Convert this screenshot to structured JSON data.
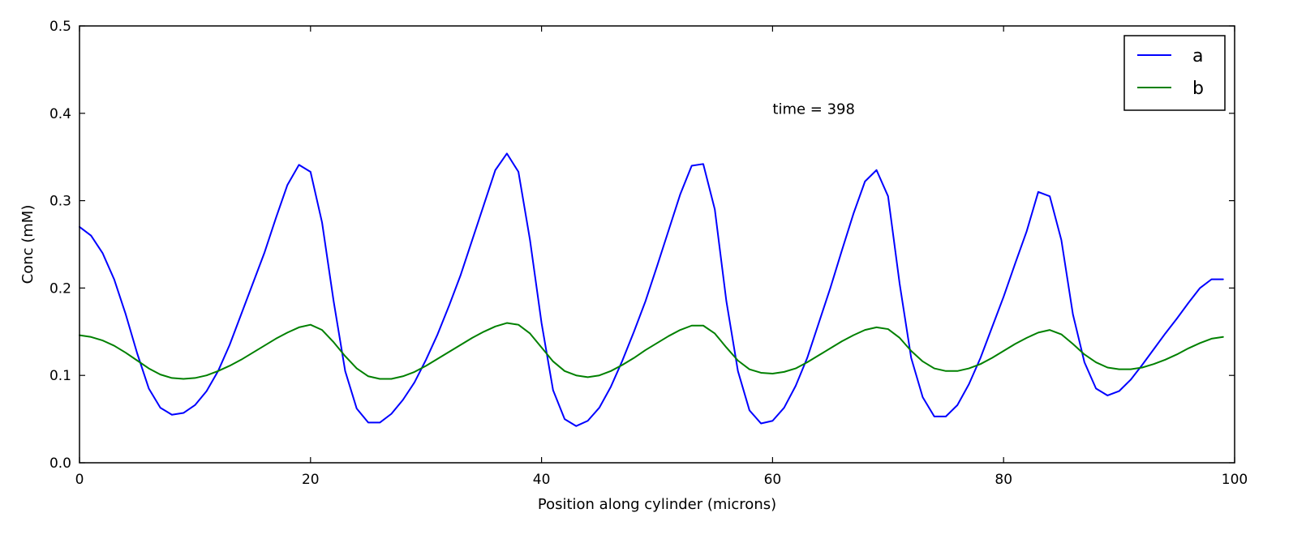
{
  "chart_data": {
    "type": "line",
    "title": "",
    "xlabel": "Position along cylinder (microns)",
    "ylabel": "Conc (mM)",
    "xlim": [
      0,
      100
    ],
    "ylim": [
      0.0,
      0.5
    ],
    "xticks": [
      0,
      20,
      40,
      60,
      80,
      100
    ],
    "yticks": [
      0.0,
      0.1,
      0.2,
      0.3,
      0.4,
      0.5
    ],
    "xtick_labels": [
      "0",
      "20",
      "40",
      "60",
      "80",
      "100"
    ],
    "ytick_labels": [
      "0.0",
      "0.1",
      "0.2",
      "0.3",
      "0.4",
      "0.5"
    ],
    "grid": false,
    "legend_position": "top-right",
    "annotation": {
      "text": "time = 398",
      "x": 60,
      "y": 0.405
    },
    "series": [
      {
        "name": "a",
        "color": "#0000ff",
        "points": [
          [
            0,
            0.27
          ],
          [
            1,
            0.26
          ],
          [
            2,
            0.24
          ],
          [
            3,
            0.21
          ],
          [
            4,
            0.17
          ],
          [
            5,
            0.125
          ],
          [
            6,
            0.085
          ],
          [
            7,
            0.063
          ],
          [
            8,
            0.055
          ],
          [
            9,
            0.057
          ],
          [
            10,
            0.066
          ],
          [
            11,
            0.082
          ],
          [
            12,
            0.105
          ],
          [
            13,
            0.135
          ],
          [
            14,
            0.17
          ],
          [
            15,
            0.205
          ],
          [
            16,
            0.24
          ],
          [
            17,
            0.28
          ],
          [
            18,
            0.318
          ],
          [
            19,
            0.341
          ],
          [
            20,
            0.333
          ],
          [
            21,
            0.275
          ],
          [
            22,
            0.185
          ],
          [
            23,
            0.105
          ],
          [
            24,
            0.062
          ],
          [
            25,
            0.046
          ],
          [
            26,
            0.046
          ],
          [
            27,
            0.056
          ],
          [
            28,
            0.072
          ],
          [
            29,
            0.092
          ],
          [
            30,
            0.118
          ],
          [
            31,
            0.147
          ],
          [
            32,
            0.18
          ],
          [
            33,
            0.215
          ],
          [
            34,
            0.255
          ],
          [
            35,
            0.295
          ],
          [
            36,
            0.335
          ],
          [
            37,
            0.354
          ],
          [
            38,
            0.333
          ],
          [
            39,
            0.255
          ],
          [
            40,
            0.16
          ],
          [
            41,
            0.083
          ],
          [
            42,
            0.05
          ],
          [
            43,
            0.042
          ],
          [
            44,
            0.048
          ],
          [
            45,
            0.063
          ],
          [
            46,
            0.087
          ],
          [
            47,
            0.117
          ],
          [
            48,
            0.15
          ],
          [
            49,
            0.185
          ],
          [
            50,
            0.225
          ],
          [
            51,
            0.266
          ],
          [
            52,
            0.307
          ],
          [
            53,
            0.34
          ],
          [
            54,
            0.342
          ],
          [
            55,
            0.29
          ],
          [
            56,
            0.185
          ],
          [
            57,
            0.105
          ],
          [
            58,
            0.06
          ],
          [
            59,
            0.045
          ],
          [
            60,
            0.048
          ],
          [
            61,
            0.063
          ],
          [
            62,
            0.088
          ],
          [
            63,
            0.12
          ],
          [
            64,
            0.16
          ],
          [
            65,
            0.2
          ],
          [
            66,
            0.243
          ],
          [
            67,
            0.285
          ],
          [
            68,
            0.322
          ],
          [
            69,
            0.335
          ],
          [
            70,
            0.305
          ],
          [
            71,
            0.205
          ],
          [
            72,
            0.12
          ],
          [
            73,
            0.075
          ],
          [
            74,
            0.053
          ],
          [
            75,
            0.053
          ],
          [
            76,
            0.066
          ],
          [
            77,
            0.09
          ],
          [
            78,
            0.12
          ],
          [
            79,
            0.155
          ],
          [
            80,
            0.19
          ],
          [
            81,
            0.228
          ],
          [
            82,
            0.265
          ],
          [
            83,
            0.31
          ],
          [
            84,
            0.305
          ],
          [
            85,
            0.255
          ],
          [
            86,
            0.17
          ],
          [
            87,
            0.115
          ],
          [
            88,
            0.085
          ],
          [
            89,
            0.077
          ],
          [
            90,
            0.082
          ],
          [
            91,
            0.095
          ],
          [
            92,
            0.112
          ],
          [
            93,
            0.13
          ],
          [
            94,
            0.148
          ],
          [
            95,
            0.165
          ],
          [
            96,
            0.183
          ],
          [
            97,
            0.2
          ],
          [
            98,
            0.21
          ],
          [
            99,
            0.21
          ]
        ]
      },
      {
        "name": "b",
        "color": "#008000",
        "points": [
          [
            0,
            0.146
          ],
          [
            1,
            0.144
          ],
          [
            2,
            0.14
          ],
          [
            3,
            0.134
          ],
          [
            4,
            0.126
          ],
          [
            5,
            0.117
          ],
          [
            6,
            0.108
          ],
          [
            7,
            0.101
          ],
          [
            8,
            0.097
          ],
          [
            9,
            0.096
          ],
          [
            10,
            0.097
          ],
          [
            11,
            0.1
          ],
          [
            12,
            0.105
          ],
          [
            13,
            0.111
          ],
          [
            14,
            0.118
          ],
          [
            15,
            0.126
          ],
          [
            16,
            0.134
          ],
          [
            17,
            0.142
          ],
          [
            18,
            0.149
          ],
          [
            19,
            0.155
          ],
          [
            20,
            0.158
          ],
          [
            21,
            0.152
          ],
          [
            22,
            0.138
          ],
          [
            23,
            0.122
          ],
          [
            24,
            0.108
          ],
          [
            25,
            0.099
          ],
          [
            26,
            0.096
          ],
          [
            27,
            0.096
          ],
          [
            28,
            0.099
          ],
          [
            29,
            0.104
          ],
          [
            30,
            0.111
          ],
          [
            31,
            0.119
          ],
          [
            32,
            0.127
          ],
          [
            33,
            0.135
          ],
          [
            34,
            0.143
          ],
          [
            35,
            0.15
          ],
          [
            36,
            0.156
          ],
          [
            37,
            0.16
          ],
          [
            38,
            0.158
          ],
          [
            39,
            0.148
          ],
          [
            40,
            0.132
          ],
          [
            41,
            0.116
          ],
          [
            42,
            0.105
          ],
          [
            43,
            0.1
          ],
          [
            44,
            0.098
          ],
          [
            45,
            0.1
          ],
          [
            46,
            0.105
          ],
          [
            47,
            0.112
          ],
          [
            48,
            0.12
          ],
          [
            49,
            0.129
          ],
          [
            50,
            0.137
          ],
          [
            51,
            0.145
          ],
          [
            52,
            0.152
          ],
          [
            53,
            0.157
          ],
          [
            54,
            0.157
          ],
          [
            55,
            0.148
          ],
          [
            56,
            0.132
          ],
          [
            57,
            0.117
          ],
          [
            58,
            0.107
          ],
          [
            59,
            0.103
          ],
          [
            60,
            0.102
          ],
          [
            61,
            0.104
          ],
          [
            62,
            0.108
          ],
          [
            63,
            0.115
          ],
          [
            64,
            0.123
          ],
          [
            65,
            0.131
          ],
          [
            66,
            0.139
          ],
          [
            67,
            0.146
          ],
          [
            68,
            0.152
          ],
          [
            69,
            0.155
          ],
          [
            70,
            0.153
          ],
          [
            71,
            0.143
          ],
          [
            72,
            0.128
          ],
          [
            73,
            0.116
          ],
          [
            74,
            0.108
          ],
          [
            75,
            0.105
          ],
          [
            76,
            0.105
          ],
          [
            77,
            0.108
          ],
          [
            78,
            0.113
          ],
          [
            79,
            0.12
          ],
          [
            80,
            0.128
          ],
          [
            81,
            0.136
          ],
          [
            82,
            0.143
          ],
          [
            83,
            0.149
          ],
          [
            84,
            0.152
          ],
          [
            85,
            0.147
          ],
          [
            86,
            0.136
          ],
          [
            87,
            0.124
          ],
          [
            88,
            0.115
          ],
          [
            89,
            0.109
          ],
          [
            90,
            0.107
          ],
          [
            91,
            0.107
          ],
          [
            92,
            0.109
          ],
          [
            93,
            0.113
          ],
          [
            94,
            0.118
          ],
          [
            95,
            0.124
          ],
          [
            96,
            0.131
          ],
          [
            97,
            0.137
          ],
          [
            98,
            0.142
          ],
          [
            99,
            0.144
          ]
        ]
      }
    ]
  }
}
